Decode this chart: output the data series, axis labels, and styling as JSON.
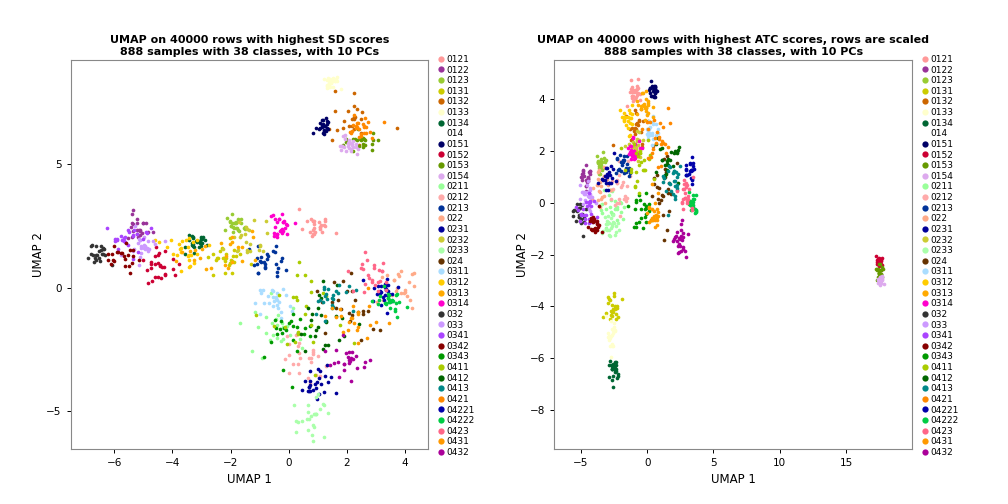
{
  "title1": "UMAP on 40000 rows with highest SD scores\n888 samples with 38 classes, with 10 PCs",
  "title2": "UMAP on 40000 rows with highest ATC scores, rows are scaled\n888 samples with 38 classes, with 10 PCs",
  "xlabel": "UMAP 1",
  "ylabel": "UMAP 2",
  "classes": [
    "0121",
    "0122",
    "0123",
    "0131",
    "0132",
    "0133",
    "0134",
    "014",
    "0151",
    "0152",
    "0153",
    "0154",
    "0211",
    "0212",
    "0213",
    "022",
    "0231",
    "0232",
    "0233",
    "024",
    "0311",
    "0312",
    "0313",
    "0314",
    "032",
    "033",
    "0341",
    "0342",
    "0343",
    "0411",
    "0412",
    "0413",
    "0421",
    "04221",
    "04222",
    "0423",
    "0431",
    "0432"
  ],
  "color_map": {
    "0121": "#FF9999",
    "0122": "#993399",
    "0123": "#99CC33",
    "0131": "#CCCC00",
    "0132": "#CC6600",
    "0133": "#FFFFCC",
    "0134": "#006633",
    "014": "#FFFFFF",
    "0151": "#000066",
    "0152": "#CC0033",
    "0153": "#669900",
    "0154": "#DDAAEE",
    "0211": "#99FF99",
    "0212": "#FFAAAA",
    "0213": "#003399",
    "022": "#FFAA88",
    "0231": "#000099",
    "0232": "#CCCC33",
    "0233": "#AAFFAA",
    "024": "#663300",
    "0311": "#AADDFF",
    "0312": "#FFCC00",
    "0313": "#FFAA00",
    "0314": "#FF00CC",
    "032": "#333333",
    "033": "#CC99FF",
    "0341": "#AA44FF",
    "0342": "#880000",
    "0343": "#009900",
    "0411": "#AACC00",
    "0412": "#006600",
    "0413": "#008888",
    "0421": "#FF8800",
    "04221": "#0000AA",
    "04222": "#00CC44",
    "0423": "#FF6688",
    "0431": "#FF9900",
    "0432": "#AA0099"
  },
  "plot1_xlim": [
    -7.5,
    4.8
  ],
  "plot1_ylim": [
    -6.5,
    9.2
  ],
  "plot2_xlim": [
    -7.0,
    20.0
  ],
  "plot2_ylim": [
    -9.5,
    5.5
  ],
  "plot1_xticks": [
    -6,
    -4,
    -2,
    0,
    2,
    4
  ],
  "plot1_yticks": [
    -5,
    0,
    5
  ],
  "plot2_xticks": [
    -5,
    0,
    5,
    10,
    15
  ],
  "plot2_yticks": [
    -8,
    -6,
    -4,
    -2,
    0,
    2,
    4
  ],
  "dot_size": 7,
  "legend_fontsize": 6.5,
  "title_fontsize": 8.0,
  "axis_fontsize": 8.5,
  "tick_fontsize": 7.5
}
